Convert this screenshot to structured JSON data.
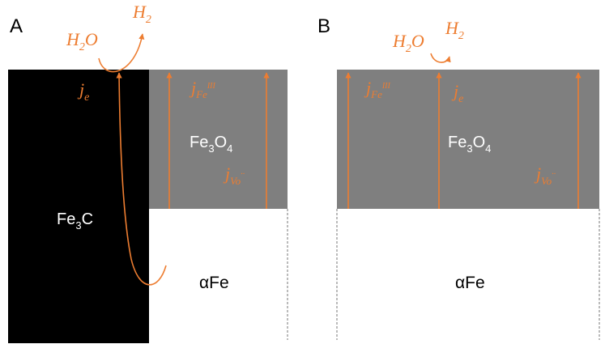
{
  "panels": {
    "a": {
      "label": "A",
      "carbide": "Fe",
      "carbide_sub": "3",
      "carbide_tail": "C",
      "oxide": "Fe",
      "oxide_sub1": "3",
      "oxide_mid": "O",
      "oxide_sub2": "4",
      "metal": "αFe",
      "reactant": "H",
      "reactant_sub": "2",
      "reactant_tail": "O",
      "product": "H",
      "product_sub": "2",
      "flux_electron": "j",
      "flux_electron_sub": "e",
      "flux_iron": "j",
      "flux_iron_sub": "Fe",
      "flux_iron_sup": "III",
      "flux_vacancy": "j",
      "flux_vacancy_sub": "Vo",
      "flux_vacancy_sup": "··"
    },
    "b": {
      "label": "B",
      "oxide": "Fe",
      "oxide_sub1": "3",
      "oxide_mid": "O",
      "oxide_sub2": "4",
      "metal": "αFe",
      "reactant": "H",
      "reactant_sub": "2",
      "reactant_tail": "O",
      "product": "H",
      "product_sub": "2",
      "flux_electron": "j",
      "flux_electron_sub": "e",
      "flux_iron": "j",
      "flux_iron_sub": "Fe",
      "flux_iron_sup": "III",
      "flux_vacancy": "j",
      "flux_vacancy_sub": "Vo",
      "flux_vacancy_sup": "··"
    }
  },
  "colors": {
    "carbide": "#000000",
    "oxide": "#7f7f7f",
    "metal": "#ffffff",
    "flux": "#ed7d31",
    "label": "#000000",
    "oxide_text": "#ffffff"
  }
}
